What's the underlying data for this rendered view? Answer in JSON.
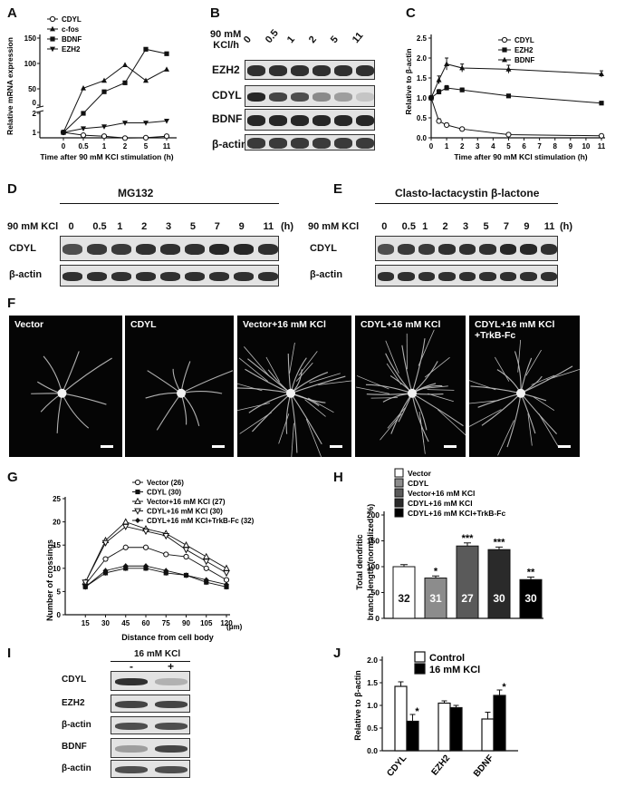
{
  "panels": {
    "A": "A",
    "B": "B",
    "C": "C",
    "D": "D",
    "E": "E",
    "F": "F",
    "G": "G",
    "H": "H",
    "I": "I",
    "J": "J"
  },
  "panelA": {
    "ylabel": "Relative mRNA expression",
    "xlabel": "Time after 90 mM KCl stimulation  (h)",
    "xticks": [
      "0",
      "0.5",
      "1",
      "2",
      "5",
      "11"
    ],
    "yticks_top": [
      "150",
      "100",
      "50",
      "0"
    ],
    "yticks_bottom": [
      "2",
      "1"
    ],
    "legend": [
      "CDYL",
      "c-fos",
      "BDNF",
      "EZH2"
    ]
  },
  "panelB": {
    "header": "90 mM KCl/h",
    "header_line1": "90 mM",
    "header_line2": "KCl/h",
    "lanes": [
      "0",
      "0.5",
      "1",
      "2",
      "5",
      "11"
    ],
    "rows": [
      "EZH2",
      "CDYL",
      "BDNF",
      "β-actin"
    ]
  },
  "panelC": {
    "ylabel": "Relative to β-actin",
    "xlabel": "Time after 90 mM KCl stimulation  (h)",
    "xticks": [
      "0",
      "1",
      "2",
      "3",
      "4",
      "5",
      "6",
      "7",
      "8",
      "9",
      "10",
      "11"
    ],
    "yticks": [
      "0.0",
      "0.5",
      "1.0",
      "1.5",
      "2.0",
      "2.5"
    ],
    "legend": [
      "CDYL",
      "EZH2",
      "BDNF"
    ]
  },
  "panelD": {
    "treatment": "MG132",
    "kcl_label": "90 mM KCl",
    "lanes": [
      "0",
      "0.5",
      "1",
      "2",
      "3",
      "5",
      "7",
      "9",
      "11",
      "(h)"
    ],
    "rows": [
      "CDYL",
      "β-actin"
    ]
  },
  "panelE": {
    "treatment": "Clasto-lactacystin β-lactone",
    "kcl_label": "90 mM KCl",
    "lanes": [
      "0",
      "0.5",
      "1",
      "2",
      "3",
      "5",
      "7",
      "9",
      "11",
      "(h)"
    ],
    "rows": [
      "CDYL",
      "β-actin"
    ]
  },
  "panelF": {
    "images": [
      "Vector",
      "CDYL",
      "Vector+16 mM KCl",
      "CDYL+16 mM KCl",
      "CDYL+16 mM KCl\n+TrkB-Fc"
    ]
  },
  "panelG": {
    "ylabel": "Number of crossings",
    "xlabel": "Distance from cell body",
    "xticks": [
      "0",
      "15",
      "30",
      "45",
      "60",
      "75",
      "90",
      "105",
      "120"
    ],
    "xunit": "(μm)",
    "yticks": [
      "0",
      "5",
      "10",
      "15",
      "20",
      "25"
    ],
    "legend": [
      "Vector (26)",
      "CDYL (30)",
      "Vector+16 mM KCl (27)",
      "CDYL+16 mM KCl (30)",
      "CDYL+16 mM KCl+TrkB-Fc (32)"
    ]
  },
  "panelH": {
    "ylabel_line1": "Total dendritic",
    "ylabel_line2": "branch length (normalized, %)",
    "yticks": [
      "0",
      "50",
      "100",
      "150",
      "200"
    ],
    "legend": [
      "Vector",
      "CDYL",
      "Vector+16 mM KCl",
      "CDYL+16 mM KCl",
      "CDYL+16 mM KCl+TrkB-Fc"
    ],
    "ns": [
      "32",
      "31",
      "27",
      "30",
      "30"
    ],
    "sig": [
      "",
      "*",
      "***",
      "***",
      "**"
    ]
  },
  "panelI": {
    "treatment": "16 mM KCl",
    "lanes": [
      "-",
      "+"
    ],
    "rows": [
      "CDYL",
      "EZH2",
      "β-actin",
      "BDNF",
      "β-actin"
    ]
  },
  "panelJ": {
    "ylabel": "Relative to β-actin",
    "categories": [
      "CDYL",
      "EZH2",
      "BDNF"
    ],
    "yticks": [
      "0.0",
      "0.5",
      "1.0",
      "1.5",
      "2.0"
    ],
    "legend": [
      "Control",
      "16 mM KCl"
    ],
    "sig": [
      "*",
      "",
      "*"
    ]
  },
  "chart_data": [
    {
      "type": "line",
      "panel": "A",
      "xlabel": "Time after 90 mM KCl stimulation  (h)",
      "ylabel": "Relative mRNA expression",
      "categories": [
        "0",
        "0.5",
        "1",
        "2",
        "5",
        "11"
      ],
      "series": [
        {
          "name": "CDYL",
          "values": [
            1,
            0.85,
            0.8,
            0.7,
            0.72,
            0.8
          ]
        },
        {
          "name": "c-fos",
          "values": [
            1,
            38,
            55,
            90,
            55,
            80
          ]
        },
        {
          "name": "BDNF",
          "values": [
            1,
            2,
            30,
            50,
            125,
            115
          ]
        },
        {
          "name": "EZH2",
          "values": [
            1,
            1.2,
            1.3,
            1.5,
            1.5,
            1.6
          ]
        }
      ]
    },
    {
      "type": "line",
      "panel": "C",
      "xlabel": "Time after 90 mM KCl stimulation  (h)",
      "ylabel": "Relative to β-actin",
      "x": [
        0,
        0.5,
        1,
        2,
        5,
        11
      ],
      "ylim": [
        0,
        2.5
      ],
      "series": [
        {
          "name": "CDYL",
          "values": [
            1.0,
            0.42,
            0.32,
            0.22,
            0.08,
            0.05
          ],
          "errors": [
            0.04,
            0.06,
            0.05,
            0.04,
            0.03,
            0.02
          ]
        },
        {
          "name": "EZH2",
          "values": [
            1.0,
            1.15,
            1.25,
            1.2,
            1.05,
            0.87
          ],
          "errors": [
            0.05,
            0.06,
            0.06,
            0.05,
            0.04,
            0.04
          ]
        },
        {
          "name": "BDNF",
          "values": [
            1.0,
            1.45,
            1.85,
            1.75,
            1.72,
            1.6
          ],
          "errors": [
            0.06,
            0.1,
            0.15,
            0.1,
            0.1,
            0.08
          ]
        }
      ]
    },
    {
      "type": "line",
      "panel": "G",
      "xlabel": "Distance from cell body",
      "ylabel": "Number of crossings",
      "x": [
        15,
        30,
        45,
        60,
        75,
        90,
        105,
        120
      ],
      "ylim": [
        0,
        25
      ],
      "series": [
        {
          "name": "Vector (26)",
          "values": [
            6.5,
            12,
            14.5,
            14.5,
            13,
            12.5,
            10,
            7.5
          ]
        },
        {
          "name": "CDYL (30)",
          "values": [
            6,
            9,
            10,
            10,
            9,
            8.5,
            7,
            6
          ]
        },
        {
          "name": "Vector+16 mM KCl (27)",
          "values": [
            7,
            16,
            20,
            18.5,
            17.5,
            15,
            12.5,
            10
          ]
        },
        {
          "name": "CDYL+16 mM KCl (30)",
          "values": [
            7,
            15.5,
            19,
            18,
            17,
            14,
            11.5,
            9
          ]
        },
        {
          "name": "CDYL+16 mM KCl+TrkB-Fc (32)",
          "values": [
            6,
            9.5,
            10.5,
            10.5,
            9.5,
            8.5,
            7.5,
            6.5
          ]
        }
      ]
    },
    {
      "type": "bar",
      "panel": "H",
      "ylabel": "Total dendritic branch length (normalized, %)",
      "categories": [
        "Vector",
        "CDYL",
        "Vector+16 mM KCl",
        "CDYL+16 mM KCl",
        "CDYL+16 mM KCl+TrkB-Fc"
      ],
      "values": [
        100,
        78,
        140,
        133,
        75
      ],
      "errors": [
        4,
        4,
        6,
        5,
        5
      ],
      "ylim": [
        0,
        200
      ],
      "colors": [
        "#ffffff",
        "#8c8c8c",
        "#5a5a5a",
        "#2a2a2a",
        "#000000"
      ]
    },
    {
      "type": "bar",
      "panel": "J",
      "ylabel": "Relative to β-actin",
      "categories": [
        "CDYL",
        "EZH2",
        "BDNF"
      ],
      "series": [
        {
          "name": "Control",
          "values": [
            1.42,
            1.05,
            0.7
          ],
          "errors": [
            0.1,
            0.05,
            0.15
          ]
        },
        {
          "name": "16 mM KCl",
          "values": [
            0.65,
            0.95,
            1.22
          ],
          "errors": [
            0.15,
            0.05,
            0.12
          ]
        }
      ],
      "ylim": [
        0,
        2.0
      ]
    }
  ]
}
